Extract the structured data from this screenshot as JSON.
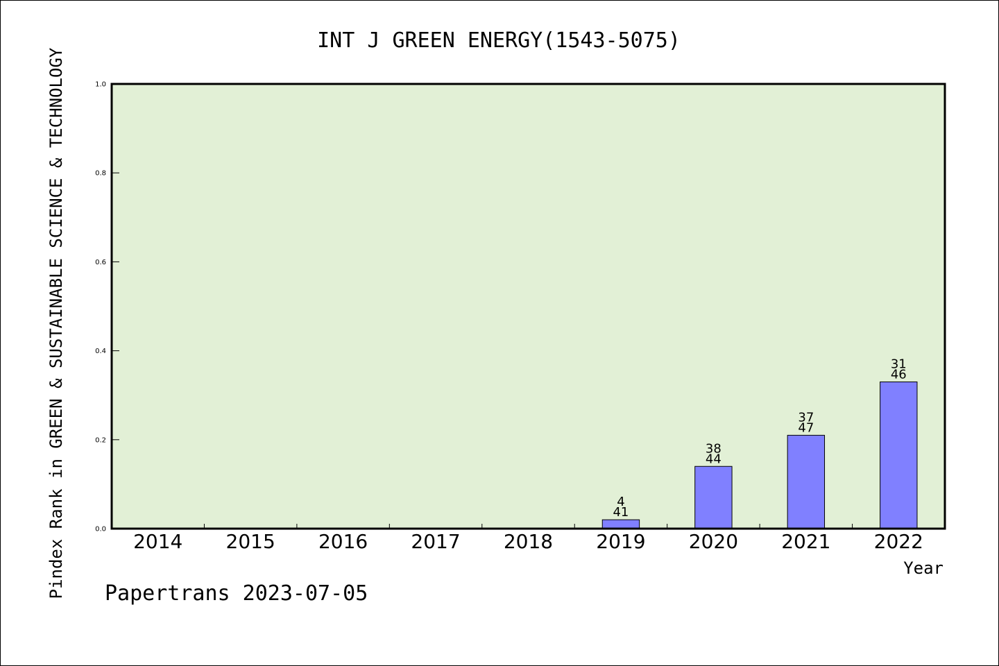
{
  "chart_data": {
    "type": "bar",
    "title": "INT J GREEN ENERGY(1543-5075)",
    "ylabel": "Pindex Rank in GREEN & SUSTAINABLE SCIENCE & TECHNOLOGY",
    "xlabel": "Year",
    "categories": [
      "2014",
      "2015",
      "2016",
      "2017",
      "2018",
      "2019",
      "2020",
      "2021",
      "2022"
    ],
    "values": [
      0,
      0,
      0,
      0,
      0,
      0.02,
      0.14,
      0.21,
      0.33
    ],
    "labels_top": [
      "",
      "",
      "",
      "",
      "",
      "4",
      "38",
      "37",
      "31"
    ],
    "labels_bottom": [
      "",
      "",
      "",
      "",
      "",
      "41",
      "44",
      "47",
      "46"
    ],
    "ylim": [
      0,
      1.0
    ],
    "yticks": [
      "0.0",
      "0.2",
      "0.4",
      "0.6",
      "0.8",
      "1.0"
    ],
    "grid": false,
    "colors": {
      "plot_bg": "#e2f0d6",
      "bar": "#8080ff",
      "bar_edge": "#000000"
    }
  },
  "footer": "Papertrans 2023-07-05"
}
